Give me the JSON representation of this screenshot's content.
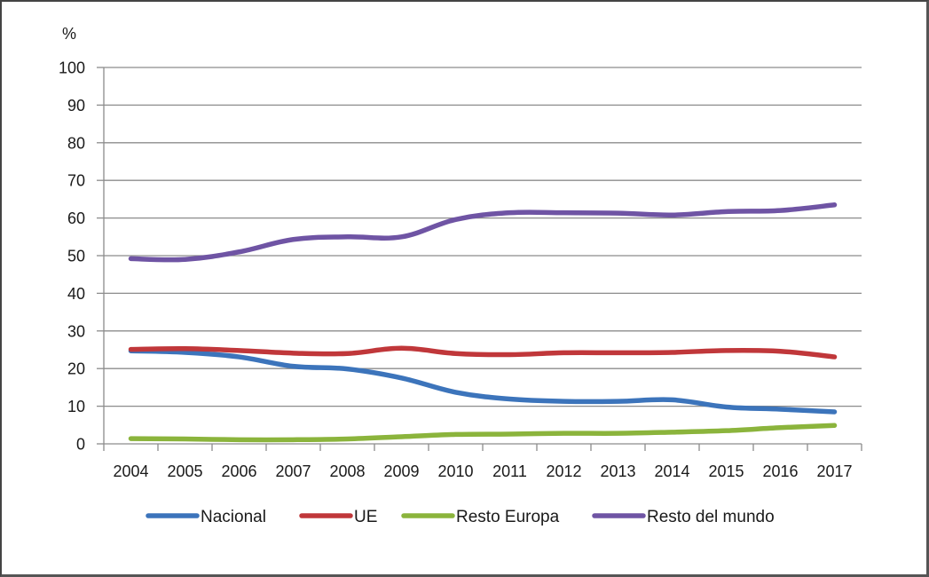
{
  "chart_data": {
    "type": "line",
    "title": "",
    "xlabel": "",
    "ylabel": "%",
    "ylim": [
      0,
      100
    ],
    "y_ticks": [
      "0",
      "10",
      "20",
      "30",
      "40",
      "50",
      "60",
      "70",
      "80",
      "90",
      "100"
    ],
    "y_tick_values": [
      0,
      10,
      20,
      30,
      40,
      50,
      60,
      70,
      80,
      90,
      100
    ],
    "grid": "horizontal",
    "legend_position": "bottom",
    "categories": [
      "2004",
      "2005",
      "2006",
      "2007",
      "2008",
      "2009",
      "2010",
      "2011",
      "2012",
      "2013",
      "2014",
      "2015",
      "2016",
      "2017"
    ],
    "series": [
      {
        "name": "Nacional",
        "color": "#3c74bb",
        "values": [
          24.7,
          24.3,
          23.1,
          20.6,
          19.9,
          17.5,
          13.7,
          11.9,
          11.3,
          11.3,
          11.7,
          9.8,
          9.2,
          8.5
        ]
      },
      {
        "name": "UE",
        "color": "#c0373a",
        "values": [
          25.1,
          25.3,
          24.8,
          24.1,
          24.0,
          25.4,
          24.0,
          23.7,
          24.2,
          24.2,
          24.3,
          24.8,
          24.6,
          23.1
        ]
      },
      {
        "name": "Resto Europa",
        "color": "#8bb43c",
        "values": [
          1.4,
          1.3,
          1.1,
          1.1,
          1.3,
          1.9,
          2.5,
          2.6,
          2.8,
          2.8,
          3.1,
          3.5,
          4.3,
          4.9
        ]
      },
      {
        "name": "Resto del mundo",
        "color": "#6f54a4",
        "values": [
          49.2,
          49.0,
          51.0,
          54.3,
          55.0,
          55.0,
          59.6,
          61.4,
          61.4,
          61.3,
          60.8,
          61.7,
          62.0,
          63.5
        ]
      }
    ]
  },
  "colors": {
    "grid": "#8c8c8c",
    "axis": "#8c8c8c",
    "text": "#1a1a1a"
  }
}
